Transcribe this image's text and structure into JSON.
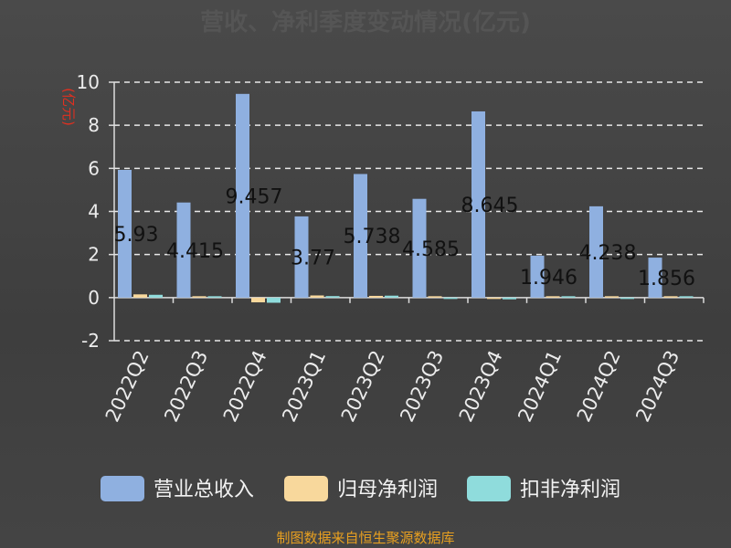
{
  "chart_data": {
    "type": "bar",
    "title": "营收、净利季度变动情况(亿元)",
    "ylabel": "(亿元)",
    "ylim": [
      -2,
      10
    ],
    "yticks": [
      -2,
      0,
      2,
      4,
      6,
      8,
      10
    ],
    "grid": true,
    "legend_position": "bottom",
    "categories": [
      "2022Q2",
      "2022Q3",
      "2022Q4",
      "2023Q1",
      "2023Q2",
      "2023Q3",
      "2023Q4",
      "2024Q1",
      "2024Q2",
      "2024Q3"
    ],
    "series": [
      {
        "name": "营业总收入",
        "color": "#8fb0e0",
        "values": [
          5.93,
          4.415,
          9.457,
          3.77,
          5.738,
          4.585,
          8.645,
          1.946,
          4.238,
          1.856
        ],
        "labels": [
          "5.93",
          "4.415",
          "9.457",
          "3.77",
          "5.738",
          "4.585",
          "8.645",
          "1.946",
          "4.238",
          "1.856"
        ]
      },
      {
        "name": "归母净利润",
        "color": "#f8d89c",
        "values": [
          0.15,
          0.06,
          -0.22,
          0.1,
          0.08,
          0.02,
          -0.06,
          0.03,
          0.02,
          0.01
        ]
      },
      {
        "name": "扣非净利润",
        "color": "#8fdcdc",
        "values": [
          0.13,
          0.04,
          -0.24,
          0.07,
          0.09,
          -0.03,
          -0.08,
          0.01,
          -0.01,
          0.0
        ]
      }
    ]
  },
  "footer": {
    "source": "制图数据来自恒生聚源数据库"
  }
}
